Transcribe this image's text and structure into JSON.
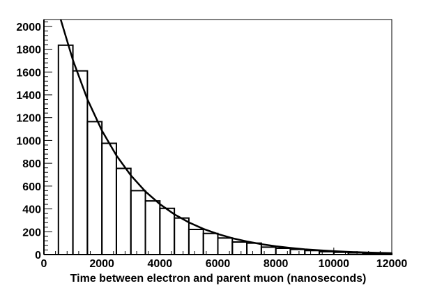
{
  "chart_data": {
    "type": "bar",
    "title": "",
    "xlabel": "Time between electron and parent muon (nanoseconds)",
    "ylabel": "",
    "xlim": [
      0,
      12000
    ],
    "ylim": [
      0,
      2060
    ],
    "grid": false,
    "legend": "none",
    "x_ticks": [
      "0",
      "2000",
      "4000",
      "6000",
      "8000",
      "10000",
      "12000"
    ],
    "y_ticks": [
      "0",
      "200",
      "400",
      "600",
      "800",
      "1000",
      "1200",
      "1400",
      "1600",
      "1800",
      "2000"
    ],
    "series": [
      {
        "style": "histogram-step",
        "bin_width": 500,
        "bin_starts": [
          500,
          1000,
          1500,
          2000,
          2500,
          3000,
          3500,
          4000,
          4500,
          5000,
          5500,
          6000,
          6500,
          7000,
          7500,
          8000,
          8500,
          9000,
          9500,
          10000,
          10500,
          11000,
          11500
        ],
        "values": [
          1835,
          1610,
          1165,
          975,
          755,
          560,
          470,
          405,
          320,
          220,
          185,
          145,
          110,
          100,
          65,
          55,
          45,
          35,
          25,
          20,
          15,
          10,
          10
        ]
      },
      {
        "style": "fit-curve",
        "function": "exponential",
        "x": [
          500,
          1000,
          1500,
          2000,
          2500,
          3000,
          3500,
          4000,
          4500,
          5000,
          5500,
          6000,
          6500,
          7000,
          7500,
          8000,
          8500,
          9000,
          9500,
          10000,
          10500,
          11000,
          11500,
          12000
        ],
        "values": [
          2134,
          1704,
          1361,
          1087,
          868,
          693,
          553,
          442,
          353,
          282,
          225,
          180,
          143,
          115,
          91,
          73,
          58,
          46,
          37,
          30,
          24,
          19,
          15,
          12
        ]
      }
    ]
  },
  "colors": {
    "axes": "#000000",
    "histogram": "#000000",
    "fit_curve": "#000000",
    "background": "#ffffff"
  }
}
